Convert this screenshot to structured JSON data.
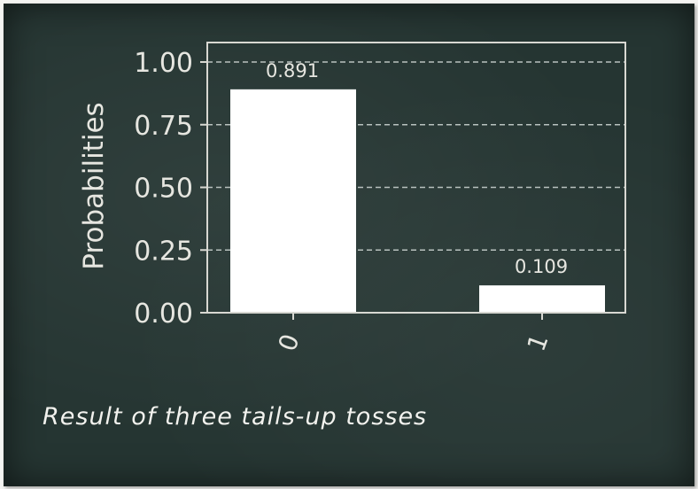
{
  "chart_data": {
    "type": "bar",
    "categories": [
      "0",
      "1"
    ],
    "values": [
      0.891,
      0.109
    ],
    "data_labels": [
      "0.891",
      "0.109"
    ],
    "ylabel": "Probabilities",
    "xlabel": "",
    "ylim": [
      0,
      1.0
    ],
    "yticks": [
      0.0,
      0.25,
      0.5,
      0.75,
      1.0
    ],
    "ytick_labels": [
      "0.00",
      "0.25",
      "0.50",
      "0.75",
      "1.00"
    ],
    "grid": "horizontal dashed",
    "colors": {
      "bar": "#ffffff",
      "axis": "#d8d8d2",
      "text": "#e6e6e0",
      "grid": "#b9c2bf"
    }
  },
  "caption": "Result of three tails-up tosses"
}
